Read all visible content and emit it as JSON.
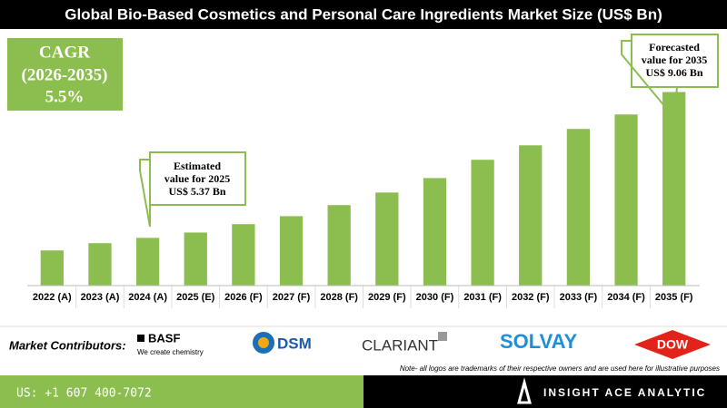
{
  "chart_data": {
    "type": "bar",
    "title": "Global Bio-Based Cosmetics and Personal Care Ingredients Market Size (US$ Bn)",
    "categories": [
      "2022 (A)",
      "2023 (A)",
      "2024 (A)",
      "2025 (E)",
      "2026 (F)",
      "2027 (F)",
      "2028 (F)",
      "2029 (F)",
      "2030 (F)",
      "2031 (F)",
      "2032 (F)",
      "2033 (F)",
      "2034 (F)",
      "2035 (F)"
    ],
    "values": [
      4.9,
      5.09,
      5.23,
      5.37,
      5.59,
      5.8,
      6.09,
      6.42,
      6.8,
      7.28,
      7.66,
      8.09,
      8.47,
      9.06
    ],
    "color": "#8cbe4f",
    "ylim": [
      4,
      9.5
    ],
    "cagr": [
      "CAGR",
      "(2026-2035)",
      "5.5%"
    ],
    "callout_2025": [
      "Estimated",
      "value for 2025",
      "US$ 5.37 Bn"
    ],
    "callout_2035": [
      "Forecasted",
      "value for 2035",
      "US$ 9.06 Bn"
    ]
  },
  "contributors": {
    "label": "Market Contributors:",
    "basf": "BASF",
    "basf_tagline": "We create chemistry",
    "dsm": "DSM",
    "clariant": "CLARIANT",
    "solvay": "SOLVAY",
    "dow": "DOW"
  },
  "note": "Note- all logos are trademarks of their respective owners and are used here for illustrative purposes",
  "footer": {
    "phone": "US: +1 607 400-7072",
    "brand": "INSIGHT ACE ANALYTIC"
  }
}
